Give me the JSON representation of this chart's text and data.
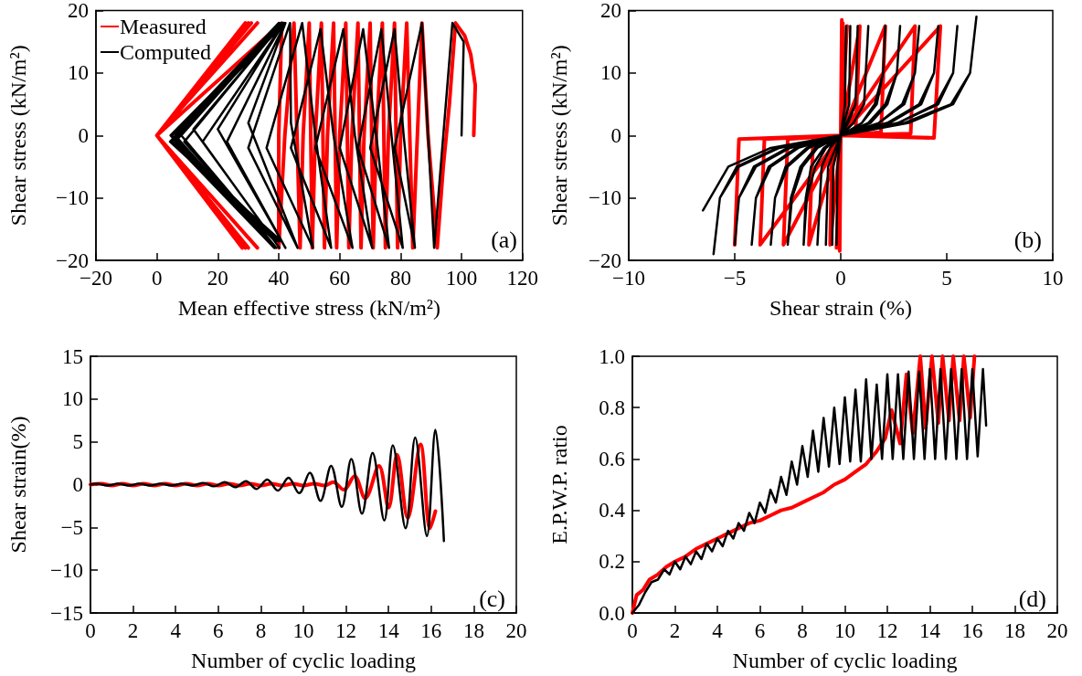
{
  "chart_data": [
    {
      "type": "line",
      "xlabel": "Mean effective stress (kN/m²)",
      "ylabel": "Shear stress (kN/m²)",
      "xlim": [
        -20,
        120
      ],
      "ylim": [
        -20,
        20
      ],
      "xticks": [
        {
          "value": -20,
          "label": "−20"
        },
        0,
        20,
        40,
        60,
        80,
        100,
        120
      ],
      "yticks": [
        {
          "value": -20,
          "label": "−20"
        },
        {
          "value": -10,
          "label": "−10"
        },
        0,
        10,
        20
      ],
      "legend": "top left",
      "annotations": [
        "(a)"
      ],
      "series": [
        {
          "name": "Measured",
          "color": "#ff0000",
          "x": [
            104,
            104.5,
            103,
            101,
            98,
            96,
            94,
            92,
            89,
            87,
            85.5,
            84,
            83,
            82,
            80,
            79,
            78.5,
            78,
            76,
            75,
            74.5,
            74,
            72,
            71,
            70.5,
            70,
            68,
            67,
            66.5,
            66,
            64,
            63,
            62.5,
            62,
            60,
            59,
            58.5,
            58,
            56,
            55,
            54.5,
            54,
            52,
            51,
            50.5,
            50,
            48,
            47,
            46,
            45,
            42,
            40,
            40,
            41,
            0,
            33,
            0,
            33,
            0,
            30,
            0,
            31,
            0,
            29,
            0,
            30,
            0,
            28,
            0,
            29,
            0
          ],
          "values": [
            0,
            8,
            13,
            16,
            18,
            5,
            -5,
            -18,
            0,
            18,
            0,
            -18,
            0,
            18,
            0,
            -18,
            0,
            18,
            0,
            -18,
            0,
            18,
            0,
            -18,
            0,
            18,
            0,
            -18,
            0,
            18,
            0,
            -18,
            0,
            18,
            0,
            -18,
            0,
            18,
            0,
            -18,
            0,
            18,
            0,
            -18,
            0,
            18,
            0,
            -18,
            0,
            18,
            0,
            -18,
            0,
            18,
            0,
            -18,
            0,
            18,
            0,
            -18,
            0,
            18,
            0,
            -18,
            0,
            18,
            0,
            -18,
            0,
            18,
            0
          ]
        },
        {
          "name": "Computed",
          "color": "#000000",
          "x": [
            100,
            100.7,
            97,
            94,
            91,
            89,
            87,
            78,
            84.7,
            81,
            78,
            70,
            80.7,
            77,
            73.7,
            66,
            76.2,
            72,
            67.7,
            60,
            70.7,
            65,
            61.2,
            52,
            64.2,
            58,
            53.7,
            44,
            57.2,
            52,
            47.7,
            36,
            51.2,
            44,
            43.7,
            30,
            46.2,
            30,
            42.2,
            23,
            42.2,
            20,
            41.7,
            15,
            40.2,
            12,
            41.2,
            9,
            39.2,
            8,
            40.7,
            6,
            38.7,
            6,
            40.2,
            5,
            38.5,
            5,
            40,
            4.5,
            39,
            4.5,
            41,
            4.3,
            40,
            4.5,
            42,
            4.5,
            41
          ],
          "values": [
            0,
            15,
            18,
            0,
            -18,
            0,
            18,
            -2,
            -18,
            0,
            17,
            -2,
            -18,
            0,
            17,
            -2,
            -18,
            0,
            17,
            -2,
            -18,
            0,
            17,
            -2,
            -18,
            0,
            17,
            -2,
            -18,
            0,
            18,
            -2,
            -18,
            2,
            18,
            -2,
            -18,
            2,
            18,
            -1,
            -18,
            1,
            18,
            -1,
            -18,
            1,
            18,
            -1,
            -18,
            0,
            18,
            -1,
            -18,
            0,
            18,
            -1,
            -18,
            0,
            18,
            -1,
            -17,
            0,
            18,
            -1,
            -17,
            0,
            18,
            -1,
            -17
          ]
        }
      ]
    },
    {
      "type": "line",
      "xlabel": "Shear strain (%)",
      "ylabel": "Shear stress (kN/m²)",
      "xlim": [
        -10,
        10
      ],
      "ylim": [
        -20,
        20
      ],
      "xticks": [
        {
          "value": -10,
          "label": "−10"
        },
        {
          "value": -5,
          "label": "−5"
        },
        0,
        5,
        10
      ],
      "yticks": [
        {
          "value": -20,
          "label": "−20"
        },
        {
          "value": -10,
          "label": "−10"
        },
        0,
        10,
        20
      ],
      "annotations": [
        "(b)"
      ],
      "series": [
        {
          "color": "#ff0000",
          "x": [
            0,
            0.05,
            0,
            -0.05,
            0,
            0.1,
            0,
            -0.2,
            0,
            0.3,
            0,
            -0.4,
            -0.5,
            0,
            0.7,
            0.9,
            0,
            -1.3,
            -1.5,
            0,
            1.9,
            2.1,
            0,
            -2.5,
            -2.7,
            0,
            3.3,
            3.5,
            0,
            -3.6,
            -3.8,
            0,
            4.4,
            4.7,
            0,
            -4.8,
            -5.0
          ],
          "values": [
            0,
            18.5,
            0,
            -18.5,
            0,
            18,
            0,
            -18,
            0,
            17.5,
            0,
            -0.5,
            -17.5,
            0,
            0.5,
            17.5,
            0,
            -0.6,
            -17.5,
            0,
            0.5,
            17.5,
            0,
            -0.6,
            -17.5,
            0,
            0.3,
            17.5,
            0,
            -0.6,
            -17.5,
            0,
            -0.4,
            17.5,
            0,
            -0.6,
            -17.5
          ]
        },
        {
          "color": "#000000",
          "x": [
            0,
            -0.15,
            -0.2,
            -0.15,
            0,
            0.2,
            0.25,
            0.2,
            0,
            -0.35,
            -0.4,
            -0.35,
            0,
            0.4,
            0.45,
            0.4,
            0,
            -0.6,
            -0.7,
            -0.6,
            0,
            0.7,
            0.8,
            0.7,
            0.35,
            0,
            -0.5,
            -0.9,
            -1.1,
            -0.9,
            -0.5,
            0,
            0.6,
            1.1,
            1.3,
            1.1,
            0.6,
            0,
            -0.8,
            -1.4,
            -1.65,
            -1.75,
            -1.6,
            -1.2,
            -0.7,
            0,
            1.0,
            1.7,
            2.0,
            2.1,
            2.0,
            1.6,
            1.0,
            0,
            -1.2,
            -1.9,
            -2.35,
            -2.5,
            -2.3,
            -1.8,
            -1.1,
            0,
            1.4,
            2.2,
            2.65,
            2.8,
            2.65,
            2.1,
            1.3,
            0,
            -1.6,
            -2.6,
            -3.1,
            -3.3,
            -3.1,
            -2.5,
            -1.5,
            0,
            1.8,
            3.0,
            3.5,
            3.7,
            3.5,
            2.9,
            1.8,
            0,
            -2.1,
            -3.4,
            -4.0,
            -4.2,
            -4.0,
            -3.3,
            -2.0,
            0,
            2.3,
            3.8,
            4.4,
            4.6,
            4.4,
            3.7,
            2.2,
            0,
            -2.5,
            -4.1,
            -4.8,
            -5.0,
            -4.8,
            -4.0,
            -2.4,
            0,
            2.7,
            4.6,
            5.3,
            5.5,
            5.3,
            4.5,
            2.7,
            0,
            -3.0,
            -4.9,
            -5.7,
            -6.0,
            -5.7,
            -4.8,
            -2.9,
            0,
            3.2,
            5.3,
            6.1,
            6.4,
            6.1,
            5.2,
            3.0,
            0,
            -3.3,
            -5.3,
            -6.5
          ],
          "values": [
            0,
            -5,
            -17.5,
            -5,
            0,
            5,
            17.5,
            5,
            0,
            -5,
            -17.5,
            -5,
            0,
            5,
            17.5,
            5,
            0,
            -5,
            -17.5,
            -5,
            0,
            5,
            17.5,
            5,
            2,
            0,
            -2,
            -5,
            -17.5,
            -5,
            -2,
            0,
            2,
            5,
            17.5,
            5,
            2,
            0,
            -2,
            -5,
            -10,
            -17.5,
            -10,
            -5,
            -2,
            0,
            2,
            5,
            10,
            17.5,
            10,
            5,
            2,
            0,
            -2,
            -5,
            -10,
            -17.5,
            -10,
            -5,
            -2,
            0,
            2,
            5,
            10,
            17.5,
            10,
            5,
            2,
            0,
            -2,
            -5,
            -10,
            -17.5,
            -10,
            -5,
            -2,
            0,
            2,
            5,
            10,
            17.5,
            10,
            5,
            2,
            0,
            -2,
            -5,
            -10,
            -17.5,
            -10,
            -5,
            -2,
            0,
            2,
            5,
            10,
            17.5,
            10,
            5,
            2,
            0,
            -2,
            -5,
            -10,
            -17.5,
            -10,
            -5,
            -2,
            0,
            2,
            5,
            10,
            17.5,
            10,
            5,
            2,
            0,
            -2,
            -5,
            -10,
            -19,
            -10,
            -5,
            -2,
            0,
            2,
            5,
            10,
            19,
            10,
            5,
            2,
            0,
            -2,
            -5,
            -12
          ]
        }
      ]
    },
    {
      "type": "line",
      "xlabel": "Number of cyclic loading",
      "ylabel": "Shear strain(%)",
      "xlim": [
        0,
        20
      ],
      "ylim": [
        -15,
        15
      ],
      "xticks": [
        0,
        2,
        4,
        6,
        8,
        10,
        12,
        14,
        16,
        18,
        20
      ],
      "yticks": [
        {
          "value": -15,
          "label": "−15"
        },
        {
          "value": -10,
          "label": "−10"
        },
        {
          "value": -5,
          "label": "−5"
        },
        0,
        5,
        10,
        15
      ],
      "annotations": [
        "(c)"
      ],
      "series": [
        {
          "color": "#ff0000",
          "x": [
            0,
            0.5,
            1,
            1.5,
            2,
            2.5,
            3,
            3.5,
            4,
            4.5,
            5,
            5.5,
            6,
            6.5,
            7,
            7.5,
            8,
            8.5,
            9,
            9.5,
            10,
            10.5,
            11,
            11.4,
            11.9,
            12.4,
            12.9,
            13.55,
            14.0,
            14.4,
            14.9,
            15.5,
            15.95,
            16.2
          ],
          "values": [
            0,
            0.1,
            -0.1,
            0.1,
            -0.1,
            0.1,
            -0.1,
            0.1,
            -0.1,
            0.1,
            -0.1,
            0.1,
            -0.1,
            0.1,
            -0.1,
            0.1,
            -0.1,
            0.1,
            -0.1,
            0.1,
            -0.1,
            0.1,
            -0.1,
            0.3,
            -0.6,
            1.0,
            -1.6,
            2.2,
            -2.7,
            3.5,
            -3.9,
            4.7,
            -5.1,
            -3.1
          ]
        },
        {
          "color": "#000000",
          "x": [
            0,
            0.3,
            0.8,
            1.3,
            1.8,
            2.3,
            2.8,
            3.3,
            3.8,
            4.3,
            4.8,
            5.3,
            5.8,
            6.3,
            6.8,
            7.3,
            7.8,
            8.3,
            8.8,
            9.3,
            9.8,
            10.3,
            10.8,
            11.3,
            11.8,
            12.25,
            12.75,
            13.25,
            13.8,
            14.2,
            14.8,
            15.25,
            15.8,
            16.2,
            16.6
          ],
          "values": [
            0,
            0.1,
            -0.1,
            0.1,
            -0.1,
            0.1,
            -0.1,
            0.1,
            -0.1,
            0.1,
            -0.1,
            0.2,
            -0.2,
            0.3,
            -0.3,
            0.4,
            -0.5,
            0.6,
            -0.7,
            0.8,
            -1.0,
            1.4,
            -1.9,
            2.2,
            -2.6,
            3.0,
            -3.4,
            3.7,
            -4.2,
            4.6,
            -5.1,
            5.5,
            -6.0,
            6.4,
            -6.6
          ]
        }
      ]
    },
    {
      "type": "line",
      "xlabel": "Number of cyclic loading",
      "ylabel": "E.P.W.P. ratio",
      "xlim": [
        0,
        20
      ],
      "ylim": [
        0,
        1
      ],
      "xticks": [
        0,
        2,
        4,
        6,
        8,
        10,
        12,
        14,
        16,
        18,
        20
      ],
      "yticks": [
        {
          "value": 0,
          "label": "0.0"
        },
        {
          "value": 0.2,
          "label": "0.2"
        },
        {
          "value": 0.4,
          "label": "0.4"
        },
        {
          "value": 0.6,
          "label": "0.6"
        },
        {
          "value": 0.8,
          "label": "0.8"
        },
        {
          "value": 1,
          "label": "1.0"
        }
      ],
      "annotations": [
        "(d)"
      ],
      "series": [
        {
          "color": "#ff0000",
          "x": [
            0,
            0.2,
            0.5,
            0.8,
            1.2,
            1.6,
            2,
            2.5,
            3,
            3.5,
            4,
            4.5,
            5,
            5.5,
            6,
            6.5,
            7,
            7.5,
            8,
            8.5,
            9,
            9.5,
            10,
            10.5,
            11,
            11.5,
            11.9,
            12.2,
            12.6,
            12.9,
            13.2,
            13.55,
            13.8,
            14.1,
            14.4,
            14.6,
            14.9,
            15.1,
            15.4,
            15.6,
            15.9,
            16.1
          ],
          "values": [
            0,
            0.07,
            0.09,
            0.13,
            0.15,
            0.18,
            0.2,
            0.22,
            0.25,
            0.27,
            0.29,
            0.31,
            0.33,
            0.35,
            0.36,
            0.38,
            0.4,
            0.41,
            0.43,
            0.45,
            0.47,
            0.5,
            0.52,
            0.55,
            0.58,
            0.63,
            0.68,
            0.79,
            0.66,
            0.93,
            0.7,
            1.0,
            0.72,
            1.0,
            0.74,
            1.0,
            0.75,
            1.0,
            0.75,
            1.0,
            0.76,
            1.0
          ]
        },
        {
          "color": "#000000",
          "x": [
            0,
            0.3,
            0.6,
            0.9,
            1.2,
            1.5,
            1.75,
            2.0,
            2.25,
            2.5,
            2.75,
            3.0,
            3.25,
            3.5,
            3.75,
            4.0,
            4.25,
            4.5,
            4.75,
            5.0,
            5.25,
            5.5,
            5.75,
            6.0,
            6.25,
            6.5,
            6.75,
            7.0,
            7.25,
            7.5,
            7.75,
            8.0,
            8.25,
            8.5,
            8.75,
            9.0,
            9.25,
            9.5,
            9.75,
            10.0,
            10.25,
            10.5,
            10.75,
            11.0,
            11.25,
            11.5,
            11.75,
            12.0,
            12.25,
            12.5,
            12.75,
            13.0,
            13.25,
            13.5,
            13.75,
            14.0,
            14.25,
            14.5,
            14.75,
            15.0,
            15.25,
            15.5,
            15.75,
            16.0,
            16.25,
            16.5,
            16.65
          ],
          "values": [
            0,
            0.03,
            0.08,
            0.12,
            0.13,
            0.17,
            0.15,
            0.2,
            0.17,
            0.22,
            0.19,
            0.24,
            0.21,
            0.27,
            0.24,
            0.29,
            0.26,
            0.32,
            0.29,
            0.35,
            0.32,
            0.39,
            0.35,
            0.43,
            0.39,
            0.48,
            0.43,
            0.53,
            0.46,
            0.59,
            0.5,
            0.65,
            0.53,
            0.71,
            0.55,
            0.76,
            0.57,
            0.8,
            0.58,
            0.84,
            0.59,
            0.87,
            0.59,
            0.91,
            0.6,
            0.89,
            0.6,
            0.93,
            0.6,
            0.93,
            0.6,
            0.94,
            0.6,
            0.94,
            0.6,
            0.95,
            0.6,
            0.95,
            0.6,
            0.95,
            0.6,
            0.95,
            0.6,
            0.95,
            0.61,
            0.95,
            0.73
          ]
        }
      ]
    }
  ]
}
